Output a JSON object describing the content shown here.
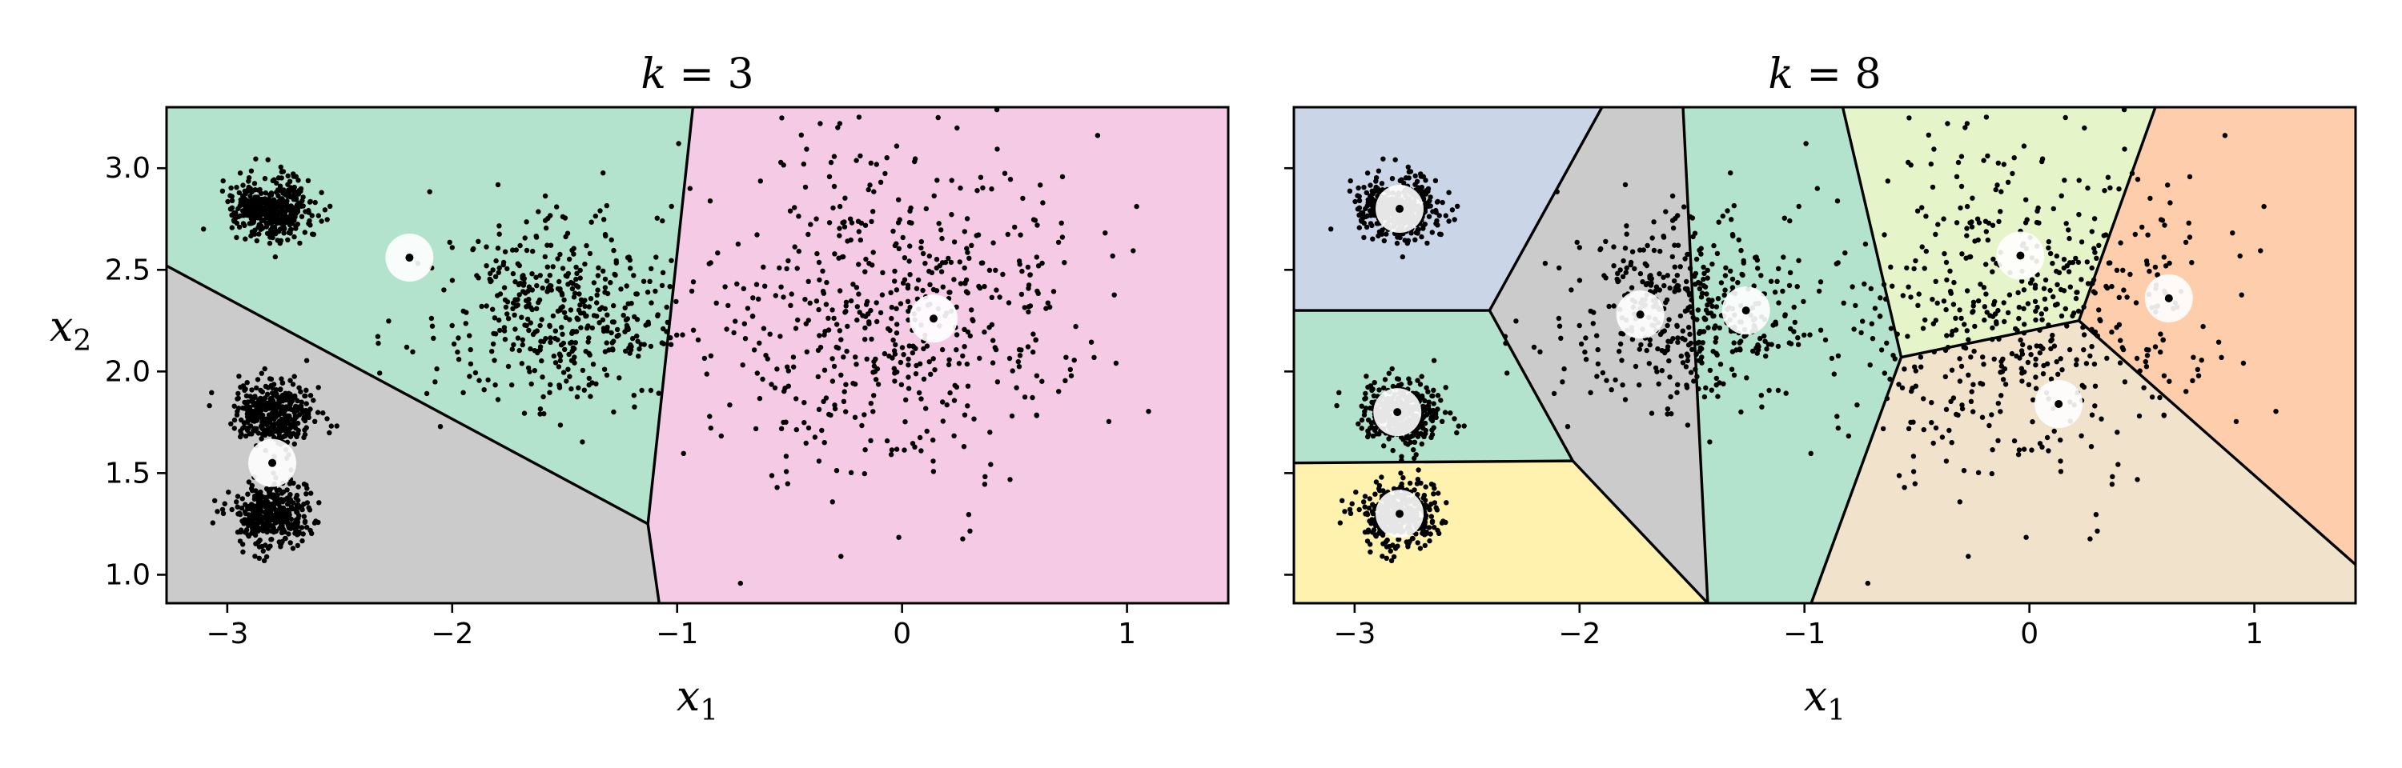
{
  "chart_data": [
    {
      "type": "scatter",
      "title_main": "k",
      "title_rest": " = 3",
      "xlabel_main": "x",
      "xlabel_sub": "1",
      "ylabel_main": "x",
      "ylabel_sub": "2",
      "xlim": [
        -3.27,
        1.45
      ],
      "ylim": [
        0.86,
        3.3
      ],
      "xticks": [
        {
          "v": -3,
          "label": "−3"
        },
        {
          "v": -2,
          "label": "−2"
        },
        {
          "v": -1,
          "label": "−1"
        },
        {
          "v": 0,
          "label": "0"
        },
        {
          "v": 1,
          "label": "1"
        }
      ],
      "yticks": [
        {
          "v": 1.0,
          "label": "1.0"
        },
        {
          "v": 1.5,
          "label": "1.5"
        },
        {
          "v": 2.0,
          "label": "2.0"
        },
        {
          "v": 2.5,
          "label": "2.5"
        },
        {
          "v": 3.0,
          "label": "3.0"
        }
      ],
      "show_ytick_labels": true,
      "regions": [
        {
          "color": "#b3e2cd",
          "points": [
            [
              -3.27,
              3.3
            ],
            [
              -0.93,
              3.3
            ],
            [
              -1.13,
              1.25
            ],
            [
              -3.27,
              2.52
            ]
          ]
        },
        {
          "color": "#cbcbcb",
          "points": [
            [
              -3.27,
              2.52
            ],
            [
              -1.13,
              1.25
            ],
            [
              -1.08,
              0.86
            ],
            [
              -3.27,
              0.86
            ]
          ]
        },
        {
          "color": "#f4cae4",
          "points": [
            [
              -0.93,
              3.3
            ],
            [
              1.45,
              3.3
            ],
            [
              1.45,
              0.86
            ],
            [
              -1.08,
              0.86
            ],
            [
              -1.13,
              1.25
            ]
          ]
        }
      ],
      "boundaries": [
        [
          [
            -0.93,
            3.3
          ],
          [
            -1.13,
            1.25
          ],
          [
            -1.08,
            0.86
          ]
        ],
        [
          [
            -3.27,
            2.52
          ],
          [
            -1.13,
            1.25
          ]
        ]
      ],
      "centroids": [
        [
          -2.19,
          2.56
        ],
        [
          -2.8,
          1.55
        ],
        [
          0.14,
          2.26
        ]
      ],
      "clusters": [
        {
          "center": [
            -2.8,
            2.8
          ],
          "std": [
            0.085,
            0.075
          ],
          "n": 420
        },
        {
          "center": [
            -2.8,
            1.8
          ],
          "std": [
            0.085,
            0.075
          ],
          "n": 380
        },
        {
          "center": [
            -2.8,
            1.3
          ],
          "std": [
            0.085,
            0.075
          ],
          "n": 380
        },
        {
          "center": [
            -1.5,
            2.3
          ],
          "std": [
            0.28,
            0.22
          ],
          "n": 460
        },
        {
          "center": [
            0.0,
            2.3
          ],
          "std": [
            0.42,
            0.42
          ],
          "n": 560
        }
      ],
      "seed": 7
    },
    {
      "type": "scatter",
      "title_main": "k",
      "title_rest": " = 8",
      "xlabel_main": "x",
      "xlabel_sub": "1",
      "ylabel_main": "",
      "ylabel_sub": "",
      "xlim": [
        -3.27,
        1.45
      ],
      "ylim": [
        0.86,
        3.3
      ],
      "xticks": [
        {
          "v": -3,
          "label": "−3"
        },
        {
          "v": -2,
          "label": "−2"
        },
        {
          "v": -1,
          "label": "−1"
        },
        {
          "v": 0,
          "label": "0"
        },
        {
          "v": 1,
          "label": "1"
        }
      ],
      "yticks": [
        {
          "v": 1.0,
          "label": ""
        },
        {
          "v": 1.5,
          "label": ""
        },
        {
          "v": 2.0,
          "label": ""
        },
        {
          "v": 2.5,
          "label": ""
        },
        {
          "v": 3.0,
          "label": ""
        }
      ],
      "show_ytick_labels": false,
      "regions": [
        {
          "color": "#cbd5e8",
          "points": [
            [
              -3.27,
              3.3
            ],
            [
              -1.9,
              3.3
            ],
            [
              -2.4,
              2.3
            ],
            [
              -3.27,
              2.3
            ]
          ]
        },
        {
          "color": "#b3e2cd",
          "points": [
            [
              -3.27,
              2.3
            ],
            [
              -2.4,
              2.3
            ],
            [
              -2.03,
              1.56
            ],
            [
              -3.27,
              1.55
            ]
          ]
        },
        {
          "color": "#fff2ae",
          "points": [
            [
              -3.27,
              1.55
            ],
            [
              -2.03,
              1.56
            ],
            [
              -1.43,
              0.86
            ],
            [
              -3.27,
              0.86
            ]
          ]
        },
        {
          "color": "#cbcbcb",
          "points": [
            [
              -1.9,
              3.3
            ],
            [
              -1.54,
              3.3
            ],
            [
              -1.43,
              0.86
            ],
            [
              -2.03,
              1.56
            ],
            [
              -2.4,
              2.3
            ]
          ]
        },
        {
          "color": "#b3e2cd",
          "points": [
            [
              -1.54,
              3.3
            ],
            [
              -0.83,
              3.3
            ],
            [
              -0.57,
              2.07
            ],
            [
              -0.97,
              0.86
            ],
            [
              -1.43,
              0.86
            ]
          ]
        },
        {
          "color": "#e6f5c9",
          "points": [
            [
              -0.83,
              3.3
            ],
            [
              0.56,
              3.3
            ],
            [
              0.22,
              2.25
            ],
            [
              -0.57,
              2.07
            ]
          ]
        },
        {
          "color": "#fdcdac",
          "points": [
            [
              0.56,
              3.3
            ],
            [
              1.45,
              3.3
            ],
            [
              1.45,
              1.05
            ],
            [
              0.22,
              2.25
            ]
          ]
        },
        {
          "color": "#f1e2cc",
          "points": [
            [
              -0.57,
              2.07
            ],
            [
              0.22,
              2.25
            ],
            [
              1.45,
              1.05
            ],
            [
              1.45,
              0.86
            ],
            [
              -0.97,
              0.86
            ]
          ]
        }
      ],
      "boundaries": [
        [
          [
            -1.9,
            3.3
          ],
          [
            -2.4,
            2.3
          ],
          [
            -2.03,
            1.56
          ],
          [
            -1.43,
            0.86
          ]
        ],
        [
          [
            -3.27,
            2.3
          ],
          [
            -2.4,
            2.3
          ]
        ],
        [
          [
            -3.27,
            1.55
          ],
          [
            -2.03,
            1.56
          ]
        ],
        [
          [
            -1.54,
            3.3
          ],
          [
            -1.43,
            0.86
          ]
        ],
        [
          [
            -0.83,
            3.3
          ],
          [
            -0.57,
            2.07
          ],
          [
            -0.97,
            0.86
          ]
        ],
        [
          [
            -0.57,
            2.07
          ],
          [
            0.22,
            2.25
          ],
          [
            1.45,
            1.05
          ]
        ],
        [
          [
            0.56,
            3.3
          ],
          [
            0.22,
            2.25
          ]
        ]
      ],
      "centroids": [
        [
          -2.8,
          2.8
        ],
        [
          -2.81,
          1.8
        ],
        [
          -2.8,
          1.3
        ],
        [
          -1.73,
          2.28
        ],
        [
          -1.26,
          2.3
        ],
        [
          -0.04,
          2.57
        ],
        [
          0.62,
          2.36
        ],
        [
          0.13,
          1.84
        ]
      ],
      "clusters": [
        {
          "center": [
            -2.8,
            2.8
          ],
          "std": [
            0.085,
            0.075
          ],
          "n": 420
        },
        {
          "center": [
            -2.8,
            1.8
          ],
          "std": [
            0.085,
            0.075
          ],
          "n": 380
        },
        {
          "center": [
            -2.8,
            1.3
          ],
          "std": [
            0.085,
            0.075
          ],
          "n": 380
        },
        {
          "center": [
            -1.5,
            2.3
          ],
          "std": [
            0.28,
            0.22
          ],
          "n": 460
        },
        {
          "center": [
            0.0,
            2.3
          ],
          "std": [
            0.42,
            0.42
          ],
          "n": 560
        }
      ],
      "seed": 7
    }
  ]
}
